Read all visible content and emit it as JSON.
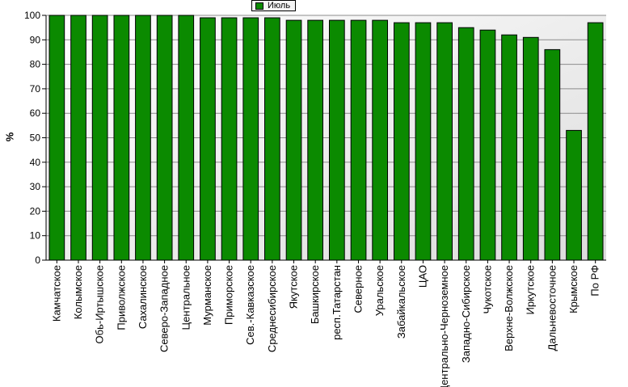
{
  "chart_data": {
    "type": "bar",
    "title": "",
    "ylabel": "%",
    "xlabel": "",
    "ylim": [
      0,
      100
    ],
    "yticks": [
      0,
      10,
      20,
      30,
      40,
      50,
      60,
      70,
      80,
      90,
      100
    ],
    "grid": true,
    "legend": "top-center",
    "categories": [
      "Камчатское",
      "Колымское",
      "Обь-Иртышское",
      "Приволжское",
      "Сахалинское",
      "Северо-Западное",
      "Центральное",
      "Мурманское",
      "Приморское",
      "Сев.-Кавказское",
      "Среднесибирское",
      "Якутское",
      "Башкирское",
      "респ.Татарстан",
      "Северное",
      "Уральское",
      "Забайкальское",
      "ЦАО",
      "Центрально-Черноземное",
      "Западно-Сибирское",
      "Чукотское",
      "Верхне-Волжское",
      "Иркутское",
      "Дальневосточное",
      "Крымское",
      "По РФ"
    ],
    "series": [
      {
        "name": "Июль",
        "color": "#0b8a00",
        "values": [
          100,
          100,
          100,
          100,
          100,
          100,
          100,
          99,
          99,
          99,
          99,
          98,
          98,
          98,
          98,
          98,
          97,
          97,
          97,
          95,
          94,
          92,
          91,
          86,
          53,
          97
        ]
      }
    ]
  }
}
